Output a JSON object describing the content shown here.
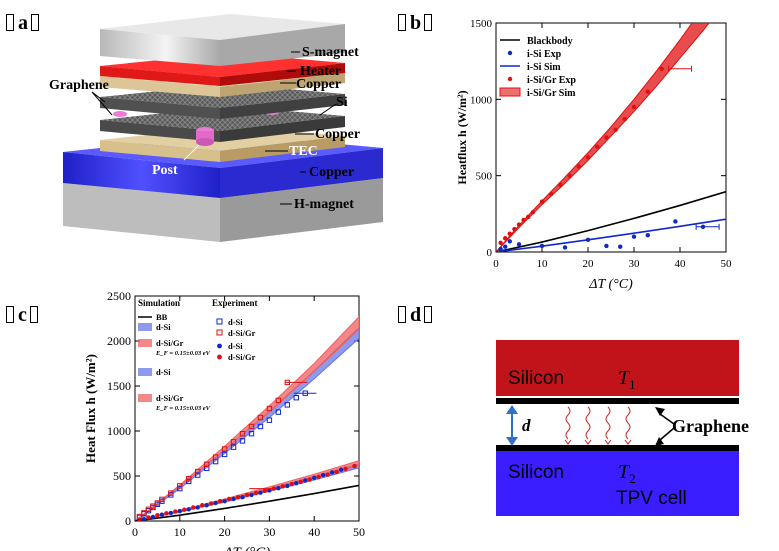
{
  "panels": {
    "a": {
      "label": "a"
    },
    "b": {
      "label": "b"
    },
    "c": {
      "label": "c"
    },
    "d": {
      "label": "d"
    }
  },
  "stack_diagram": {
    "labels": {
      "s_magnet": "S-magnet",
      "heater": "Heater",
      "copper_top": "Copper",
      "si": "Si",
      "copper_mid": "Copper",
      "tec": "TEC",
      "copper_bottom": "Copper",
      "h_magnet": "H-magnet",
      "graphene": "Graphene",
      "post": "Post"
    },
    "colors": {
      "magnet": "#d8d8d8",
      "heater": "#e01818",
      "copper": "#e8d9a8",
      "silicon": "#6a6a6a",
      "tec": "#3030ee",
      "post": "#ee7ad8"
    }
  },
  "device_schematic": {
    "top_block": {
      "material": "Silicon",
      "temp_symbol": "T",
      "temp_sub": "1",
      "color": "#c0141a"
    },
    "bottom_block": {
      "material": "Silicon",
      "temp_symbol": "T",
      "temp_sub": "2",
      "subtitle": "TPV cell",
      "color": "#3a1eff"
    },
    "gap_label": "d",
    "graphene_label": "Graphene"
  },
  "chart_data": [
    {
      "panel": "b",
      "type": "line",
      "title": "",
      "xlabel": "ΔT (°C)",
      "ylabel": "Heatflux h (W/m²)",
      "xlim": [
        0,
        50
      ],
      "ylim": [
        0,
        1500
      ],
      "xticks": [
        0,
        10,
        20,
        30,
        40,
        50
      ],
      "yticks": [
        0,
        500,
        1000,
        1500
      ],
      "legend": [
        {
          "label": "Blackbody",
          "kind": "line",
          "color": "#000000"
        },
        {
          "label": "i-Si Exp",
          "kind": "dot",
          "color": "#1028c8"
        },
        {
          "label": "i-Si Sim",
          "kind": "line",
          "color": "#1028c8"
        },
        {
          "label": "i-Si/Gr Exp",
          "kind": "dot",
          "color": "#e01010"
        },
        {
          "label": "i-Si/Gr Sim",
          "kind": "band",
          "color": "#e01010"
        }
      ],
      "series": [
        {
          "name": "Blackbody",
          "kind": "line",
          "color": "#000000",
          "x": [
            0,
            10,
            20,
            30,
            40,
            50
          ],
          "y": [
            0,
            65,
            140,
            220,
            305,
            395
          ]
        },
        {
          "name": "i-Si Sim",
          "kind": "line",
          "color": "#1028c8",
          "x": [
            0,
            10,
            20,
            30,
            40,
            50
          ],
          "y": [
            0,
            38,
            80,
            123,
            168,
            215
          ]
        },
        {
          "name": "i-Si Exp",
          "kind": "points",
          "color": "#1028c8",
          "x": [
            1,
            2,
            3,
            5,
            10,
            15,
            20,
            24,
            27,
            30,
            33,
            39,
            45
          ],
          "y": [
            20,
            35,
            70,
            50,
            40,
            30,
            80,
            40,
            35,
            100,
            110,
            200,
            165
          ]
        },
        {
          "name": "i-Si/Gr Sim",
          "kind": "band",
          "color": "#e01010",
          "x": [
            0,
            5,
            10,
            15,
            20,
            25,
            30,
            35,
            40,
            45,
            50
          ],
          "y_low": [
            0,
            160,
            310,
            450,
            600,
            760,
            920,
            1090,
            1270,
            1450,
            1640
          ],
          "y_high": [
            0,
            175,
            335,
            490,
            650,
            820,
            1000,
            1190,
            1390,
            1600,
            1820
          ]
        },
        {
          "name": "i-Si/Gr Exp",
          "kind": "points",
          "color": "#e01010",
          "x": [
            1,
            2,
            3,
            4,
            5,
            6,
            7,
            8,
            10,
            12,
            14,
            16,
            18,
            20,
            22,
            24,
            26,
            28,
            30,
            33,
            36
          ],
          "y": [
            60,
            90,
            120,
            150,
            180,
            210,
            230,
            260,
            330,
            380,
            440,
            500,
            560,
            620,
            690,
            750,
            800,
            870,
            950,
            1050,
            1200
          ]
        }
      ]
    },
    {
      "panel": "c",
      "type": "line",
      "title": "",
      "xlabel": "ΔT (°C)",
      "ylabel": "Heat Flux h (W/m²)",
      "xlim": [
        0,
        50
      ],
      "ylim": [
        0,
        2500
      ],
      "xticks": [
        0,
        10,
        20,
        30,
        40,
        50
      ],
      "yticks": [
        0,
        500,
        1000,
        1500,
        2000,
        2500
      ],
      "legend_headers": {
        "simulation": "Simulation",
        "experiment": "Experiment"
      },
      "legend_simulation": [
        {
          "label": "BB",
          "kind": "line",
          "color": "#000000"
        },
        {
          "label": "d-Si",
          "kind": "band",
          "color": "#6878e8"
        },
        {
          "label": "d-Si/Gr",
          "kind": "band",
          "color": "#f06060",
          "note": "E_F = 0.15±0.03 eV"
        },
        {
          "label": "d-Si",
          "kind": "band",
          "color": "#6878e8"
        },
        {
          "label": "d-Si/Gr",
          "kind": "band",
          "color": "#f06060",
          "note": "E_F = 0.15±0.03 eV"
        }
      ],
      "legend_experiment": [
        {
          "label": "d-Si",
          "kind": "open-square",
          "color": "#1028c8"
        },
        {
          "label": "d-Si/Gr",
          "kind": "open-square",
          "color": "#e01010"
        },
        {
          "label": "d-Si",
          "kind": "dot",
          "color": "#1028c8"
        },
        {
          "label": "d-Si/Gr",
          "kind": "dot",
          "color": "#e01010"
        }
      ],
      "series": [
        {
          "name": "BB",
          "kind": "line",
          "color": "#000000",
          "x": [
            0,
            10,
            20,
            30,
            40,
            50
          ],
          "y": [
            0,
            65,
            140,
            220,
            305,
            395
          ]
        },
        {
          "name": "d-Si Sim (upper)",
          "kind": "band",
          "color": "#6878e8",
          "x": [
            0,
            10,
            20,
            30,
            40,
            50
          ],
          "y_low": [
            0,
            360,
            750,
            1150,
            1580,
            2030
          ],
          "y_high": [
            0,
            380,
            790,
            1220,
            1670,
            2150
          ]
        },
        {
          "name": "d-Si/Gr Sim (upper)",
          "kind": "band",
          "color": "#f06060",
          "x": [
            0,
            10,
            20,
            30,
            40,
            50
          ],
          "y_low": [
            0,
            380,
            790,
            1210,
            1660,
            2130
          ],
          "y_high": [
            0,
            400,
            830,
            1280,
            1750,
            2270
          ]
        },
        {
          "name": "d-Si Sim (lower)",
          "kind": "band",
          "color": "#6878e8",
          "x": [
            0,
            10,
            20,
            30,
            40,
            50
          ],
          "y_low": [
            0,
            100,
            210,
            330,
            455,
            590
          ],
          "y_high": [
            0,
            112,
            232,
            360,
            495,
            635
          ]
        },
        {
          "name": "d-Si/Gr Sim (lower)",
          "kind": "band",
          "color": "#f06060",
          "x": [
            0,
            10,
            20,
            30,
            40,
            50
          ],
          "y_low": [
            0,
            105,
            220,
            345,
            475,
            615
          ],
          "y_high": [
            0,
            118,
            245,
            380,
            520,
            670
          ]
        },
        {
          "name": "d-Si Exp (open)",
          "kind": "open-square",
          "color": "#1028c8",
          "x": [
            1,
            2,
            3,
            4,
            5,
            6,
            8,
            10,
            12,
            14,
            16,
            18,
            20,
            22,
            24,
            26,
            28,
            30,
            32,
            34,
            36,
            38
          ],
          "y": [
            40,
            80,
            115,
            150,
            185,
            220,
            290,
            360,
            440,
            510,
            585,
            660,
            740,
            820,
            890,
            970,
            1050,
            1120,
            1210,
            1290,
            1370,
            1420
          ]
        },
        {
          "name": "d-Si/Gr Exp (open)",
          "kind": "open-square",
          "color": "#e01010",
          "x": [
            1,
            2,
            3,
            4,
            5,
            6,
            8,
            10,
            12,
            14,
            16,
            18,
            20,
            22,
            24,
            26,
            28,
            30,
            32,
            34
          ],
          "y": [
            50,
            90,
            130,
            165,
            200,
            240,
            310,
            390,
            470,
            550,
            630,
            710,
            800,
            880,
            970,
            1050,
            1150,
            1250,
            1340,
            1540
          ]
        },
        {
          "name": "d-Si Exp (dot)",
          "kind": "points",
          "color": "#1028c8",
          "x": [
            2,
            4,
            6,
            8,
            10,
            12,
            14,
            16,
            18,
            20,
            22,
            24,
            26,
            28,
            30,
            32,
            34,
            36,
            38,
            40,
            42,
            44,
            46
          ],
          "y": [
            20,
            45,
            70,
            90,
            110,
            130,
            150,
            175,
            200,
            220,
            245,
            265,
            290,
            315,
            340,
            365,
            390,
            420,
            450,
            480,
            510,
            540,
            570
          ]
        },
        {
          "name": "d-Si/Gr Exp (dot)",
          "kind": "points",
          "color": "#e01010",
          "x": [
            1,
            3,
            5,
            7,
            9,
            11,
            13,
            15,
            17,
            19,
            21,
            23,
            25,
            27,
            29,
            31,
            33,
            35,
            37,
            39,
            41,
            43,
            45,
            47,
            49
          ],
          "y": [
            15,
            40,
            65,
            85,
            105,
            125,
            150,
            175,
            195,
            220,
            245,
            265,
            290,
            310,
            335,
            360,
            385,
            410,
            435,
            460,
            490,
            515,
            545,
            580,
            610
          ]
        }
      ]
    }
  ]
}
